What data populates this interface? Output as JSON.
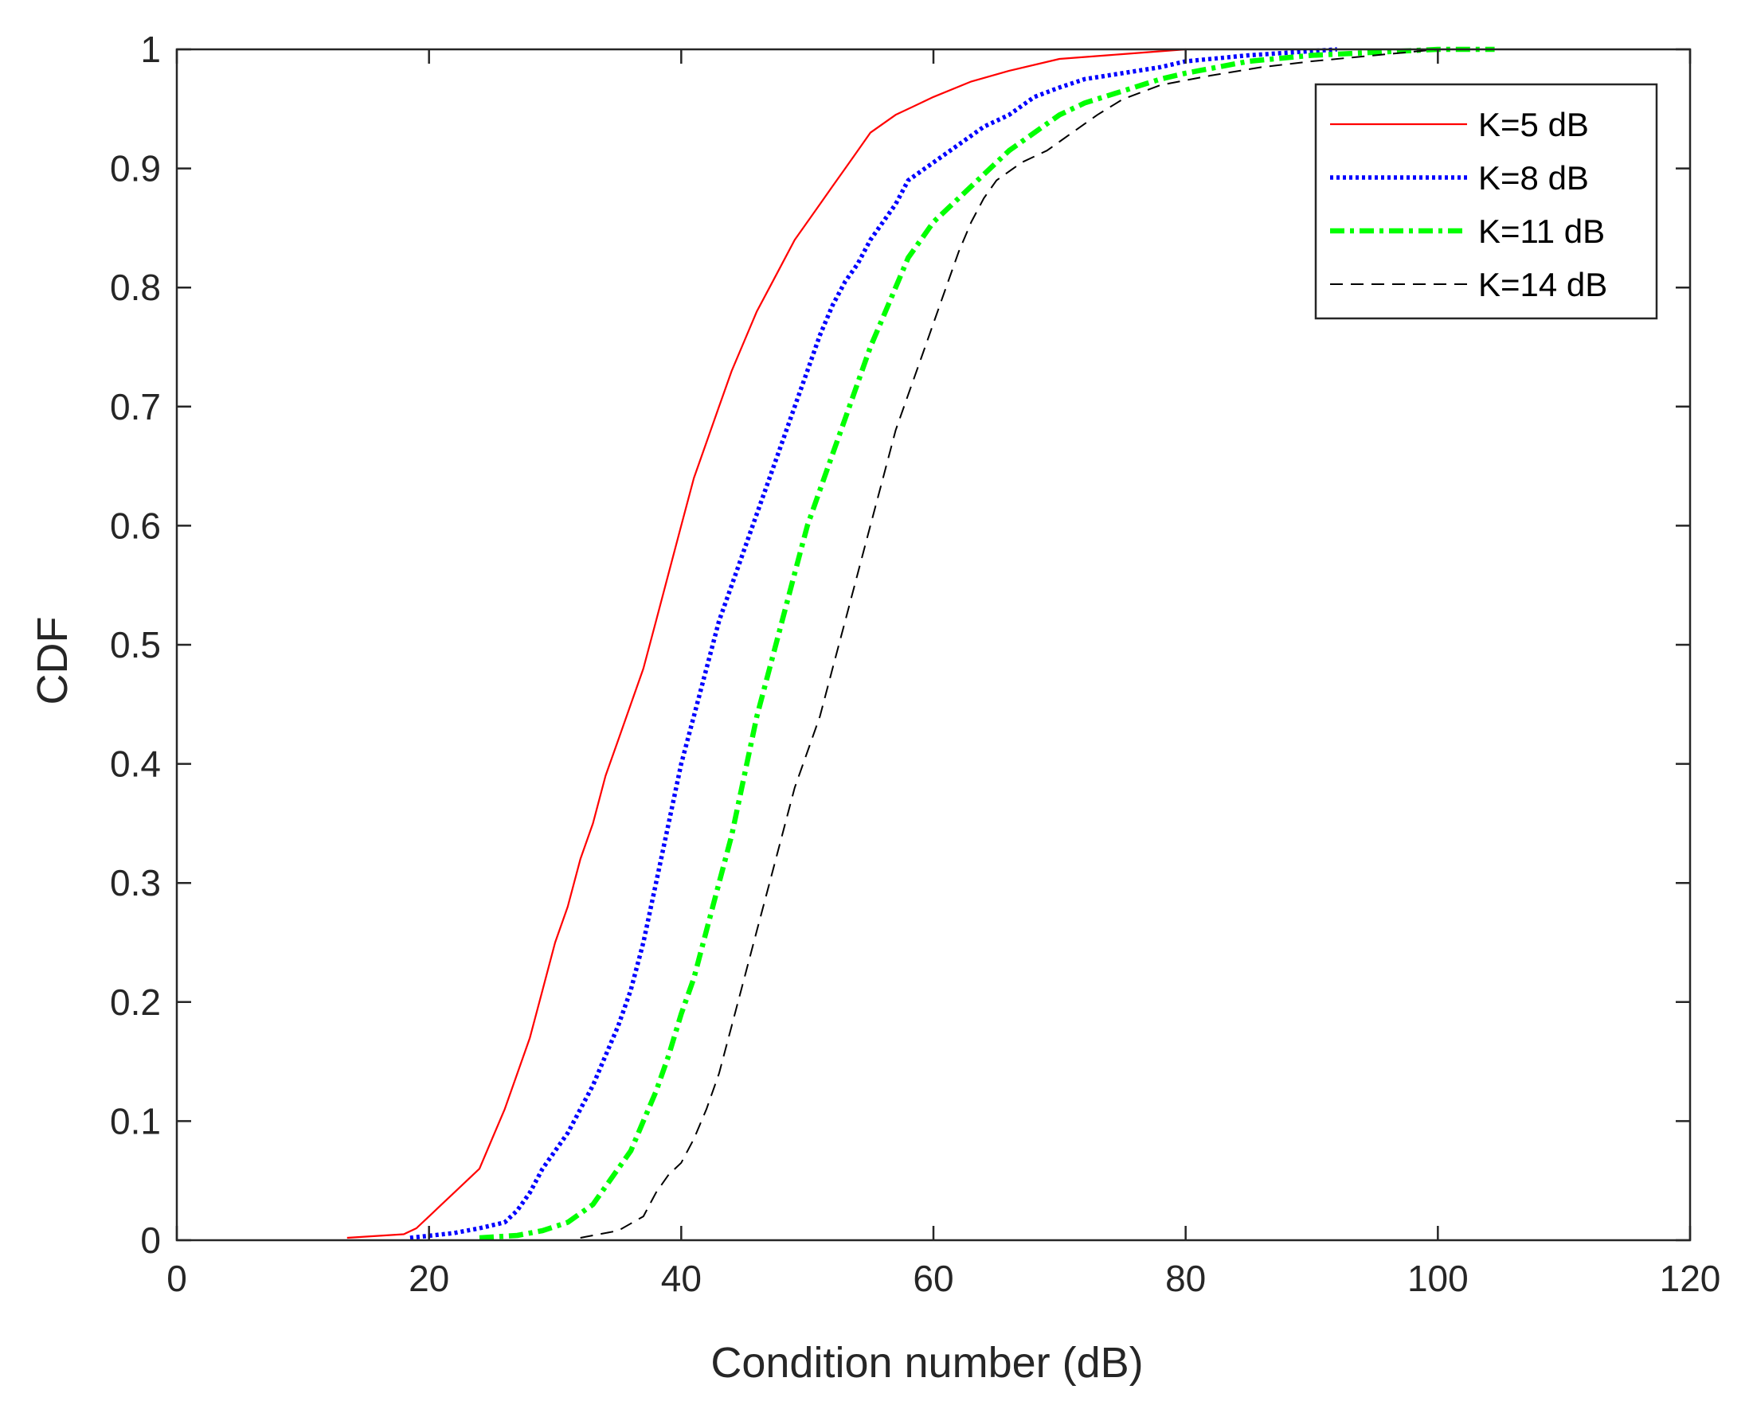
{
  "chart_data": {
    "type": "line",
    "title": "",
    "xlabel": "Condition number (dB)",
    "ylabel": "CDF",
    "xlim": [
      0,
      120
    ],
    "ylim": [
      0,
      1
    ],
    "xticks": [
      0,
      20,
      40,
      60,
      80,
      100,
      120
    ],
    "yticks": [
      0,
      0.1,
      0.2,
      0.3,
      0.4,
      0.5,
      0.6,
      0.7,
      0.8,
      0.9,
      1
    ],
    "xtick_labels": [
      "0",
      "20",
      "40",
      "60",
      "80",
      "100",
      "120"
    ],
    "ytick_labels": [
      "0",
      "0.1",
      "0.2",
      "0.3",
      "0.4",
      "0.5",
      "0.6",
      "0.7",
      "0.8",
      "0.9",
      "1"
    ],
    "grid": false,
    "legend_position": "top-right",
    "series": [
      {
        "name": "K=5 dB",
        "color": "#ff0000",
        "style": "solid",
        "points": [
          [
            13.5,
            0.002
          ],
          [
            18,
            0.005
          ],
          [
            19,
            0.01
          ],
          [
            20,
            0.02
          ],
          [
            21,
            0.03
          ],
          [
            22,
            0.04
          ],
          [
            24,
            0.06
          ],
          [
            25,
            0.085
          ],
          [
            26,
            0.11
          ],
          [
            27,
            0.14
          ],
          [
            28,
            0.17
          ],
          [
            29,
            0.21
          ],
          [
            30,
            0.25
          ],
          [
            31,
            0.28
          ],
          [
            32,
            0.32
          ],
          [
            33,
            0.35
          ],
          [
            34,
            0.39
          ],
          [
            35,
            0.42
          ],
          [
            36,
            0.45
          ],
          [
            37,
            0.48
          ],
          [
            38,
            0.52
          ],
          [
            39,
            0.56
          ],
          [
            40,
            0.6
          ],
          [
            41,
            0.64
          ],
          [
            42,
            0.67
          ],
          [
            43,
            0.7
          ],
          [
            44,
            0.73
          ],
          [
            45,
            0.755
          ],
          [
            46,
            0.78
          ],
          [
            47,
            0.8
          ],
          [
            48,
            0.82
          ],
          [
            49,
            0.84
          ],
          [
            50,
            0.855
          ],
          [
            51,
            0.87
          ],
          [
            52,
            0.885
          ],
          [
            53,
            0.9
          ],
          [
            54,
            0.915
          ],
          [
            55,
            0.93
          ],
          [
            57,
            0.945
          ],
          [
            60,
            0.96
          ],
          [
            63,
            0.973
          ],
          [
            66,
            0.982
          ],
          [
            70,
            0.992
          ],
          [
            75,
            0.996
          ],
          [
            80,
            1
          ]
        ]
      },
      {
        "name": "K=8 dB",
        "color": "#0000ff",
        "style": "dotted",
        "points": [
          [
            18.5,
            0.002
          ],
          [
            22,
            0.006
          ],
          [
            24,
            0.01
          ],
          [
            26,
            0.015
          ],
          [
            27,
            0.025
          ],
          [
            28,
            0.04
          ],
          [
            29,
            0.06
          ],
          [
            30,
            0.075
          ],
          [
            31,
            0.09
          ],
          [
            32,
            0.11
          ],
          [
            33,
            0.13
          ],
          [
            34,
            0.155
          ],
          [
            35,
            0.18
          ],
          [
            36,
            0.21
          ],
          [
            37,
            0.25
          ],
          [
            38,
            0.3
          ],
          [
            39,
            0.35
          ],
          [
            40,
            0.4
          ],
          [
            41,
            0.44
          ],
          [
            42,
            0.48
          ],
          [
            43,
            0.52
          ],
          [
            44,
            0.55
          ],
          [
            45,
            0.58
          ],
          [
            46,
            0.61
          ],
          [
            47,
            0.64
          ],
          [
            48,
            0.67
          ],
          [
            49,
            0.7
          ],
          [
            50,
            0.73
          ],
          [
            51,
            0.76
          ],
          [
            52,
            0.785
          ],
          [
            53,
            0.805
          ],
          [
            54,
            0.82
          ],
          [
            55,
            0.84
          ],
          [
            56,
            0.855
          ],
          [
            57,
            0.87
          ],
          [
            58,
            0.89
          ],
          [
            60,
            0.905
          ],
          [
            62,
            0.92
          ],
          [
            64,
            0.935
          ],
          [
            66,
            0.945
          ],
          [
            68,
            0.96
          ],
          [
            70,
            0.968
          ],
          [
            72,
            0.975
          ],
          [
            75,
            0.98
          ],
          [
            78,
            0.985
          ],
          [
            80,
            0.99
          ],
          [
            85,
            0.995
          ],
          [
            92,
            1
          ]
        ]
      },
      {
        "name": "K=11 dB",
        "color": "#00ff00",
        "style": "dashdot",
        "points": [
          [
            24,
            0.002
          ],
          [
            27,
            0.004
          ],
          [
            29,
            0.008
          ],
          [
            31,
            0.015
          ],
          [
            33,
            0.03
          ],
          [
            34,
            0.045
          ],
          [
            35,
            0.06
          ],
          [
            36,
            0.075
          ],
          [
            37,
            0.1
          ],
          [
            38,
            0.125
          ],
          [
            39,
            0.155
          ],
          [
            40,
            0.19
          ],
          [
            41,
            0.22
          ],
          [
            42,
            0.26
          ],
          [
            43,
            0.3
          ],
          [
            44,
            0.34
          ],
          [
            45,
            0.39
          ],
          [
            46,
            0.44
          ],
          [
            47,
            0.48
          ],
          [
            48,
            0.52
          ],
          [
            49,
            0.56
          ],
          [
            50,
            0.6
          ],
          [
            51,
            0.63
          ],
          [
            52,
            0.66
          ],
          [
            53,
            0.69
          ],
          [
            54,
            0.72
          ],
          [
            55,
            0.75
          ],
          [
            56,
            0.775
          ],
          [
            57,
            0.8
          ],
          [
            58,
            0.825
          ],
          [
            59,
            0.84
          ],
          [
            60,
            0.855
          ],
          [
            62,
            0.875
          ],
          [
            64,
            0.895
          ],
          [
            66,
            0.915
          ],
          [
            68,
            0.93
          ],
          [
            70,
            0.945
          ],
          [
            72,
            0.955
          ],
          [
            75,
            0.965
          ],
          [
            78,
            0.975
          ],
          [
            80,
            0.98
          ],
          [
            85,
            0.99
          ],
          [
            90,
            0.995
          ],
          [
            100,
            1
          ],
          [
            104.5,
            1
          ]
        ]
      },
      {
        "name": "K=14 dB",
        "color": "#000000",
        "style": "dashed",
        "points": [
          [
            32,
            0.002
          ],
          [
            35,
            0.008
          ],
          [
            37,
            0.02
          ],
          [
            38,
            0.04
          ],
          [
            39,
            0.055
          ],
          [
            40,
            0.065
          ],
          [
            41,
            0.085
          ],
          [
            42,
            0.11
          ],
          [
            43,
            0.14
          ],
          [
            44,
            0.18
          ],
          [
            45,
            0.22
          ],
          [
            46,
            0.26
          ],
          [
            47,
            0.3
          ],
          [
            48,
            0.34
          ],
          [
            49,
            0.38
          ],
          [
            50,
            0.41
          ],
          [
            51,
            0.44
          ],
          [
            52,
            0.48
          ],
          [
            53,
            0.52
          ],
          [
            54,
            0.56
          ],
          [
            55,
            0.6
          ],
          [
            56,
            0.64
          ],
          [
            57,
            0.68
          ],
          [
            58,
            0.71
          ],
          [
            59,
            0.74
          ],
          [
            60,
            0.77
          ],
          [
            61,
            0.8
          ],
          [
            62,
            0.83
          ],
          [
            63,
            0.855
          ],
          [
            64,
            0.875
          ],
          [
            65,
            0.89
          ],
          [
            67,
            0.905
          ],
          [
            69,
            0.915
          ],
          [
            71,
            0.93
          ],
          [
            73,
            0.945
          ],
          [
            75,
            0.958
          ],
          [
            78,
            0.97
          ],
          [
            82,
            0.978
          ],
          [
            86,
            0.985
          ],
          [
            90,
            0.99
          ],
          [
            95,
            0.995
          ],
          [
            100,
            1
          ]
        ]
      }
    ]
  }
}
